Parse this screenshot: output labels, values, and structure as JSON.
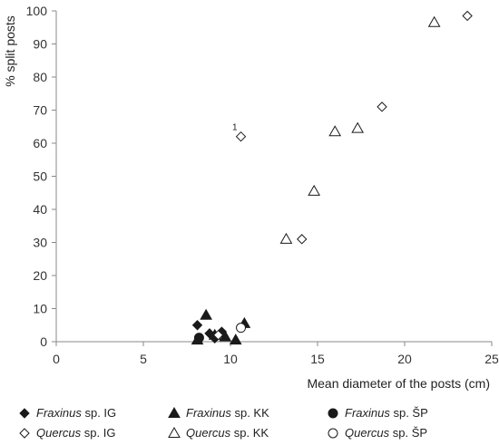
{
  "chart_data": {
    "type": "scatter",
    "xlabel": "Mean diameter of the posts (cm)",
    "ylabel": "% split posts",
    "xlim": [
      0,
      25
    ],
    "ylim": [
      0,
      100
    ],
    "xticks": [
      "0",
      "5",
      "10",
      "15",
      "20",
      "25"
    ],
    "yticks": [
      "0",
      "10",
      "20",
      "30",
      "40",
      "50",
      "60",
      "70",
      "80",
      "90",
      "100"
    ],
    "grid": false,
    "legend_position": "bottom",
    "annotations": [
      {
        "text": "1",
        "x": 10.25,
        "y": 64
      }
    ],
    "series": [
      {
        "name": "Fraxinus sp. IG",
        "genus": "Fraxinus",
        "suffix": "sp. IG",
        "marker": "diamond",
        "filled": true,
        "points": [
          [
            8.1,
            5
          ],
          [
            8.8,
            2.5
          ],
          [
            9.1,
            1
          ],
          [
            9.5,
            3
          ]
        ]
      },
      {
        "name": "Fraxinus sp. KK",
        "genus": "Fraxinus",
        "suffix": "sp. KK",
        "marker": "triangle",
        "filled": true,
        "points": [
          [
            8.1,
            0.5
          ],
          [
            8.6,
            8
          ],
          [
            9.1,
            2
          ],
          [
            9.7,
            1.5
          ],
          [
            10.3,
            0.5
          ],
          [
            10.8,
            5.5
          ]
        ]
      },
      {
        "name": "Fraxinus sp. ŠP",
        "genus": "Fraxinus",
        "suffix": "sp. ŠP",
        "marker": "circle",
        "filled": true,
        "points": [
          [
            8.2,
            1.2
          ]
        ]
      },
      {
        "name": "Quercus sp. IG",
        "genus": "Quercus",
        "suffix": "sp. IG",
        "marker": "diamond",
        "filled": false,
        "points": [
          [
            9.3,
            2
          ],
          [
            10.6,
            62
          ],
          [
            14.1,
            31
          ],
          [
            18.7,
            71
          ],
          [
            23.6,
            98.5
          ]
        ]
      },
      {
        "name": "Quercus sp. KK",
        "genus": "Quercus",
        "suffix": "sp. KK",
        "marker": "triangle",
        "filled": false,
        "points": [
          [
            13.2,
            31
          ],
          [
            14.8,
            45.5
          ],
          [
            16.0,
            63.5
          ],
          [
            17.3,
            64.5
          ],
          [
            21.7,
            96.5
          ]
        ]
      },
      {
        "name": "Quercus sp. ŠP",
        "genus": "Quercus",
        "suffix": "sp. ŠP",
        "marker": "circle",
        "filled": false,
        "points": [
          [
            10.6,
            4.2
          ]
        ]
      }
    ]
  }
}
